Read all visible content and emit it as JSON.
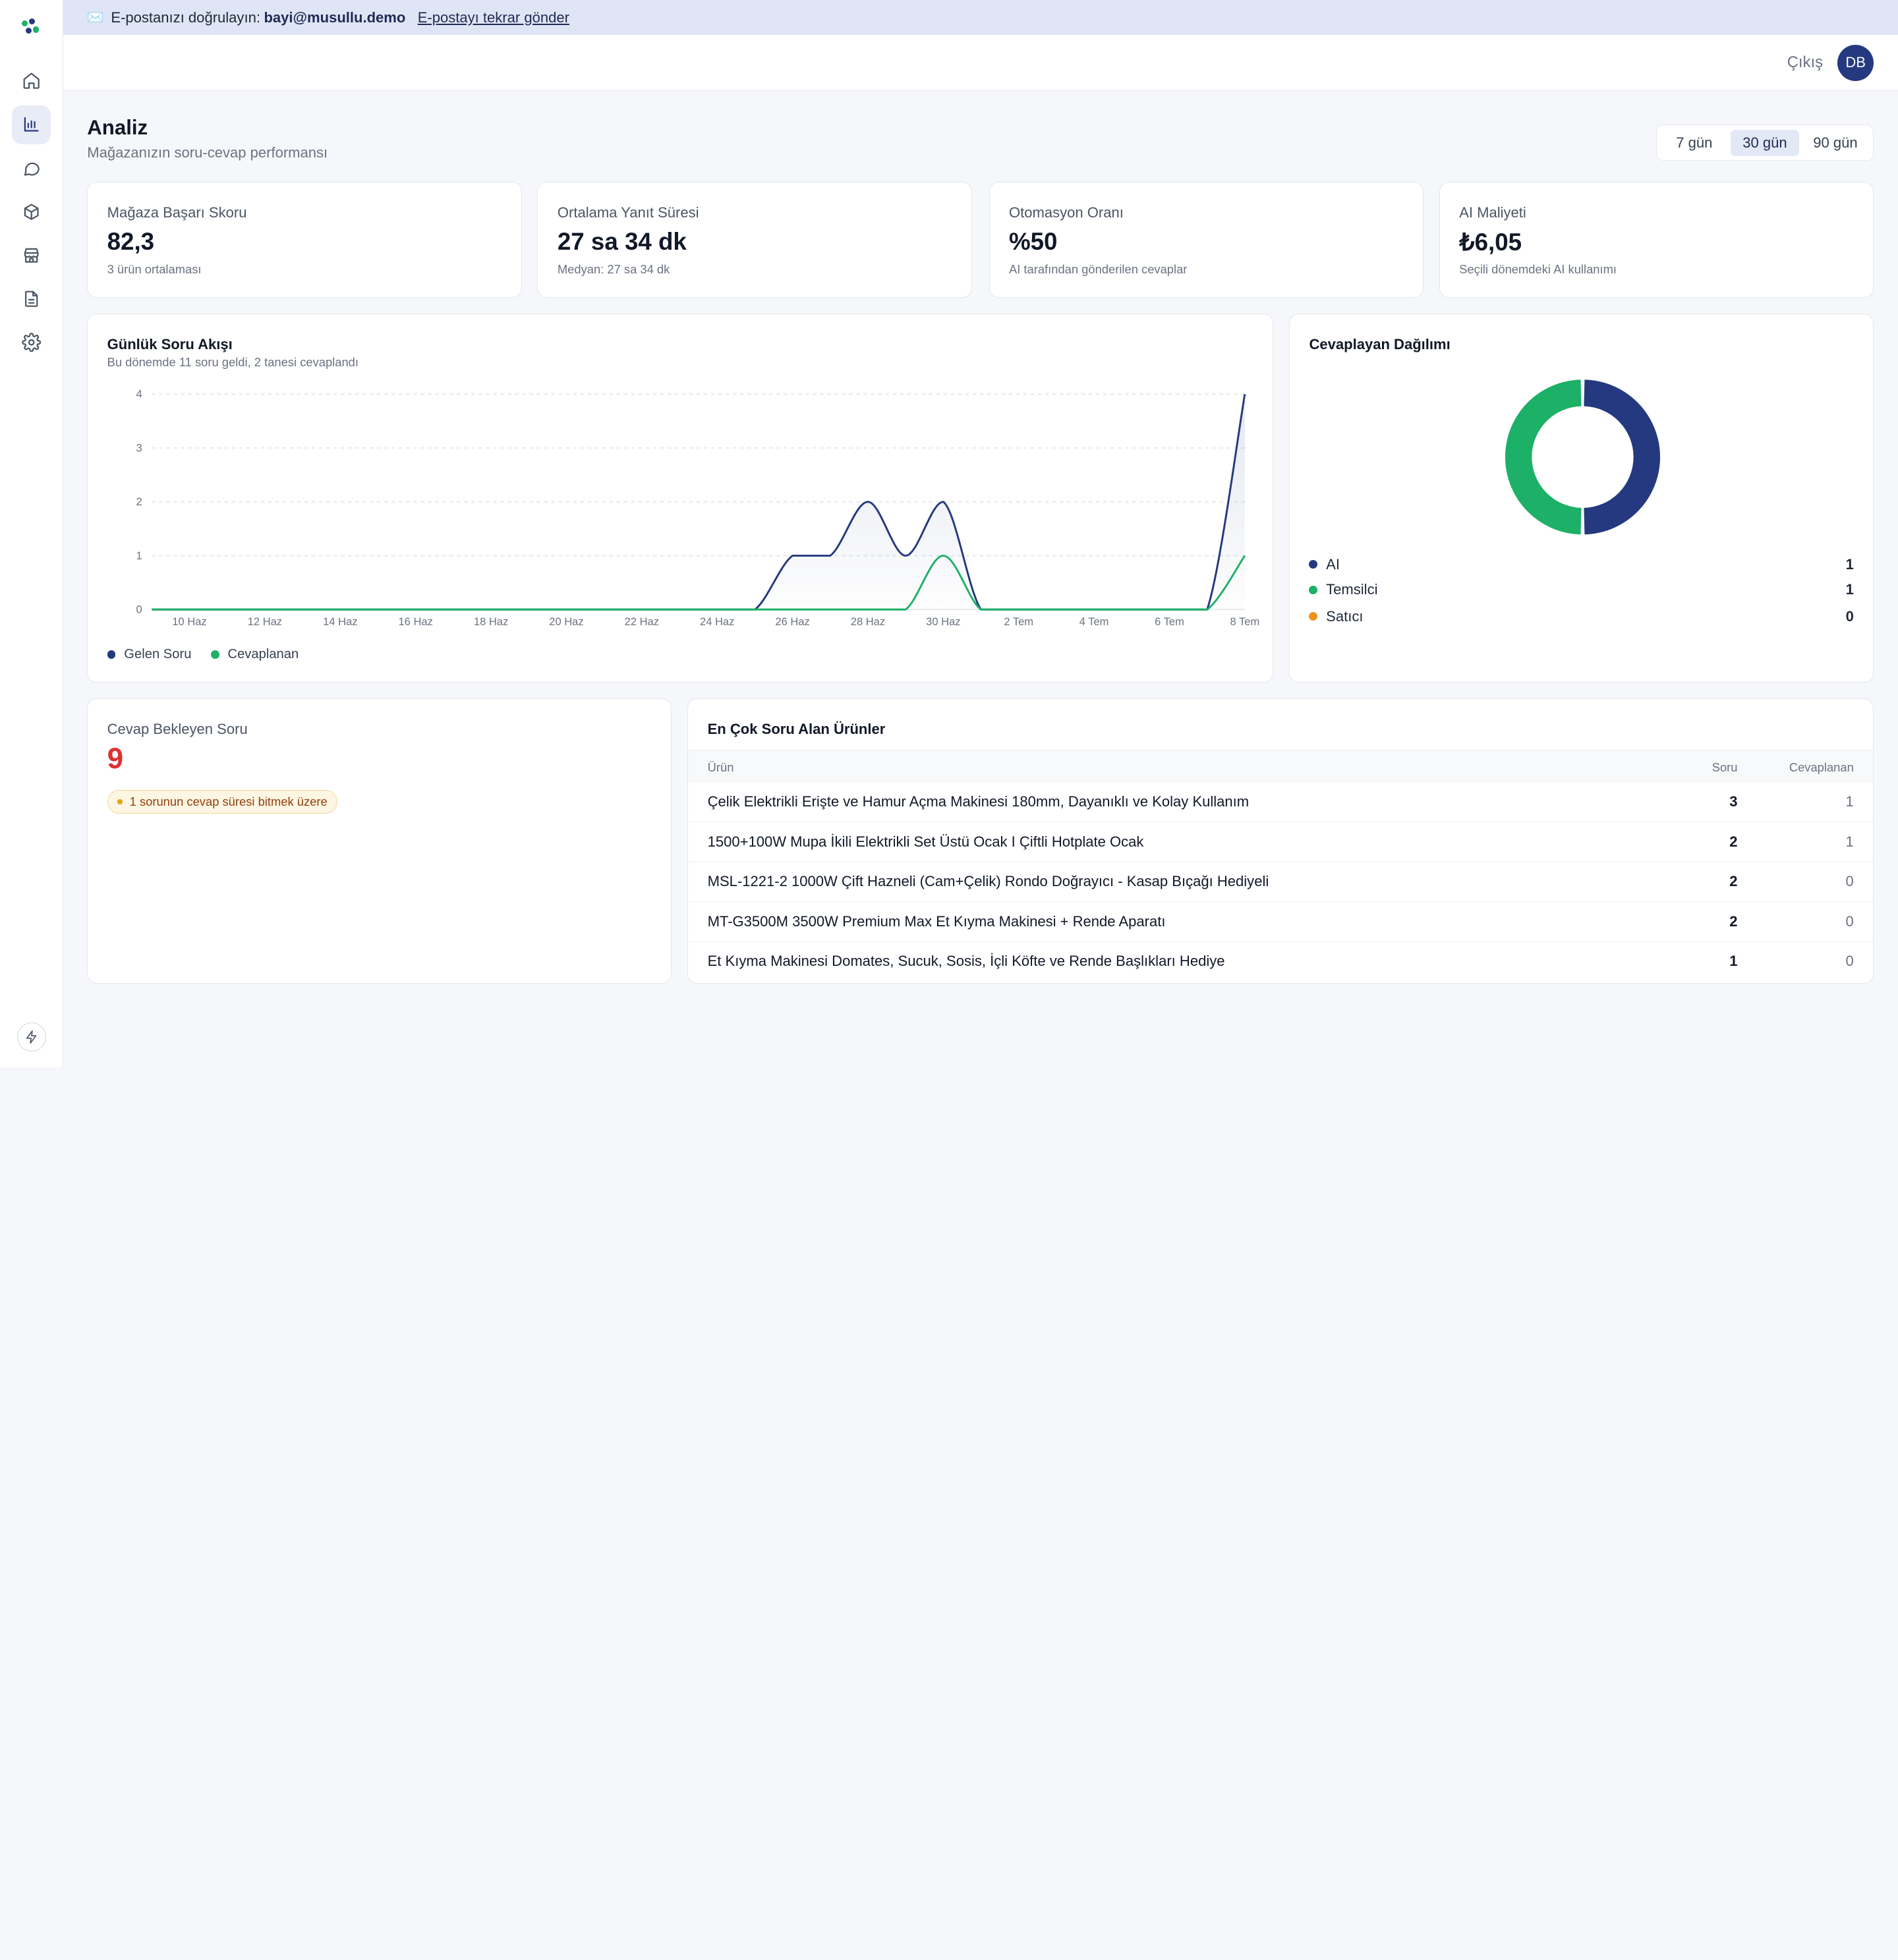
{
  "banner": {
    "text": "E-postanızı doğrulayın:",
    "email": "bayi@musullu.demo",
    "resend_label": "E-postayı tekrar gönder"
  },
  "topbar": {
    "logout_label": "Çıkış",
    "avatar_initials": "DB"
  },
  "sidebar": {
    "items": [
      {
        "name": "home-icon",
        "active": false
      },
      {
        "name": "bar-chart-icon",
        "active": true
      },
      {
        "name": "message-icon",
        "active": false
      },
      {
        "name": "box-icon",
        "active": false
      },
      {
        "name": "store-icon",
        "active": false
      },
      {
        "name": "document-icon",
        "active": false
      },
      {
        "name": "gear-icon",
        "active": false
      }
    ],
    "footer_icon": "bolt-icon"
  },
  "page": {
    "title": "Analiz",
    "subtitle": "Mağazanızın soru-cevap performansı",
    "ranges": [
      "7 gün",
      "30 gün",
      "90 gün"
    ],
    "selected_range": "30 gün"
  },
  "kpis": [
    {
      "label": "Mağaza Başarı Skoru",
      "value": "82,3",
      "sub": "3 ürün ortalaması"
    },
    {
      "label": "Ortalama Yanıt Süresi",
      "value": "27 sa 34 dk",
      "sub": "Medyan: 27 sa 34 dk"
    },
    {
      "label": "Otomasyon Oranı",
      "value": "%50",
      "sub": "AI tarafından gönderilen cevaplar"
    },
    {
      "label": "AI Maliyeti",
      "value": "₺6,05",
      "sub": "Seçili dönemdeki AI kullanımı"
    }
  ],
  "flow": {
    "title": "Günlük Soru Akışı",
    "subtitle": "Bu dönemde 11 soru geldi, 2 tanesi cevaplandı"
  },
  "chart_data": {
    "type": "area",
    "x": [
      "9 Haz",
      "10 Haz",
      "11 Haz",
      "12 Haz",
      "13 Haz",
      "14 Haz",
      "15 Haz",
      "16 Haz",
      "17 Haz",
      "18 Haz",
      "19 Haz",
      "20 Haz",
      "21 Haz",
      "22 Haz",
      "23 Haz",
      "24 Haz",
      "25 Haz",
      "26 Haz",
      "27 Haz",
      "28 Haz",
      "29 Haz",
      "30 Haz",
      "1 Tem",
      "2 Tem",
      "3 Tem",
      "4 Tem",
      "5 Tem",
      "6 Tem",
      "7 Tem",
      "8 Tem"
    ],
    "tick_labels": [
      "10 Haz",
      "12 Haz",
      "14 Haz",
      "16 Haz",
      "18 Haz",
      "20 Haz",
      "22 Haz",
      "24 Haz",
      "26 Haz",
      "28 Haz",
      "30 Haz",
      "2 Tem",
      "4 Tem",
      "6 Tem",
      "8 Tem"
    ],
    "y_ticks": [
      0,
      1,
      2,
      3,
      4
    ],
    "ylim": [
      0,
      4
    ],
    "series": [
      {
        "name": "Gelen Soru",
        "color": "#24397f",
        "values": [
          0,
          0,
          0,
          0,
          0,
          0,
          0,
          0,
          0,
          0,
          0,
          0,
          0,
          0,
          0,
          0,
          0,
          1,
          1,
          2,
          1,
          2,
          0,
          0,
          0,
          0,
          0,
          0,
          0,
          4
        ]
      },
      {
        "name": "Cevaplanan",
        "color": "#1db067",
        "values": [
          0,
          0,
          0,
          0,
          0,
          0,
          0,
          0,
          0,
          0,
          0,
          0,
          0,
          0,
          0,
          0,
          0,
          0,
          0,
          0,
          0,
          1,
          0,
          0,
          0,
          0,
          0,
          0,
          0,
          1
        ]
      }
    ],
    "grid": true,
    "legend": "bottom-left"
  },
  "distribution": {
    "title": "Cevaplayan Dağılımı",
    "items": [
      {
        "label": "AI",
        "value": 1,
        "color": "#24397f"
      },
      {
        "label": "Temsilci",
        "value": 1,
        "color": "#1db067"
      },
      {
        "label": "Satıcı",
        "value": 0,
        "color": "#f0931a"
      }
    ]
  },
  "pending": {
    "label": "Cevap Bekleyen Soru",
    "value": "9",
    "warning": "1 sorunun cevap süresi bitmek üzere"
  },
  "products": {
    "title": "En Çok Soru Alan Ürünler",
    "columns": {
      "product": "Ürün",
      "questions": "Soru",
      "answered": "Cevaplanan"
    },
    "rows": [
      {
        "name": "Çelik Elektrikli Erişte ve Hamur Açma Makinesi 180mm, Dayanıklı ve Kolay Kullanım",
        "questions": "3",
        "answered": "1"
      },
      {
        "name": "1500+100W Mupa İkili Elektrikli Set Üstü Ocak I Çiftli Hotplate Ocak",
        "questions": "2",
        "answered": "1"
      },
      {
        "name": "MSL-1221-2 1000W Çift Hazneli (Cam+Çelik) Rondo Doğrayıcı - Kasap Bıçağı Hediyeli",
        "questions": "2",
        "answered": "0"
      },
      {
        "name": "MT-G3500M 3500W Premium Max Et Kıyma Makinesi + Rende Aparatı",
        "questions": "2",
        "answered": "0"
      },
      {
        "name": "Et Kıyma Makinesi Domates, Sucuk, Sosis, İçli Köfte ve Rende Başlıkları Hediye",
        "questions": "1",
        "answered": "0"
      }
    ]
  }
}
